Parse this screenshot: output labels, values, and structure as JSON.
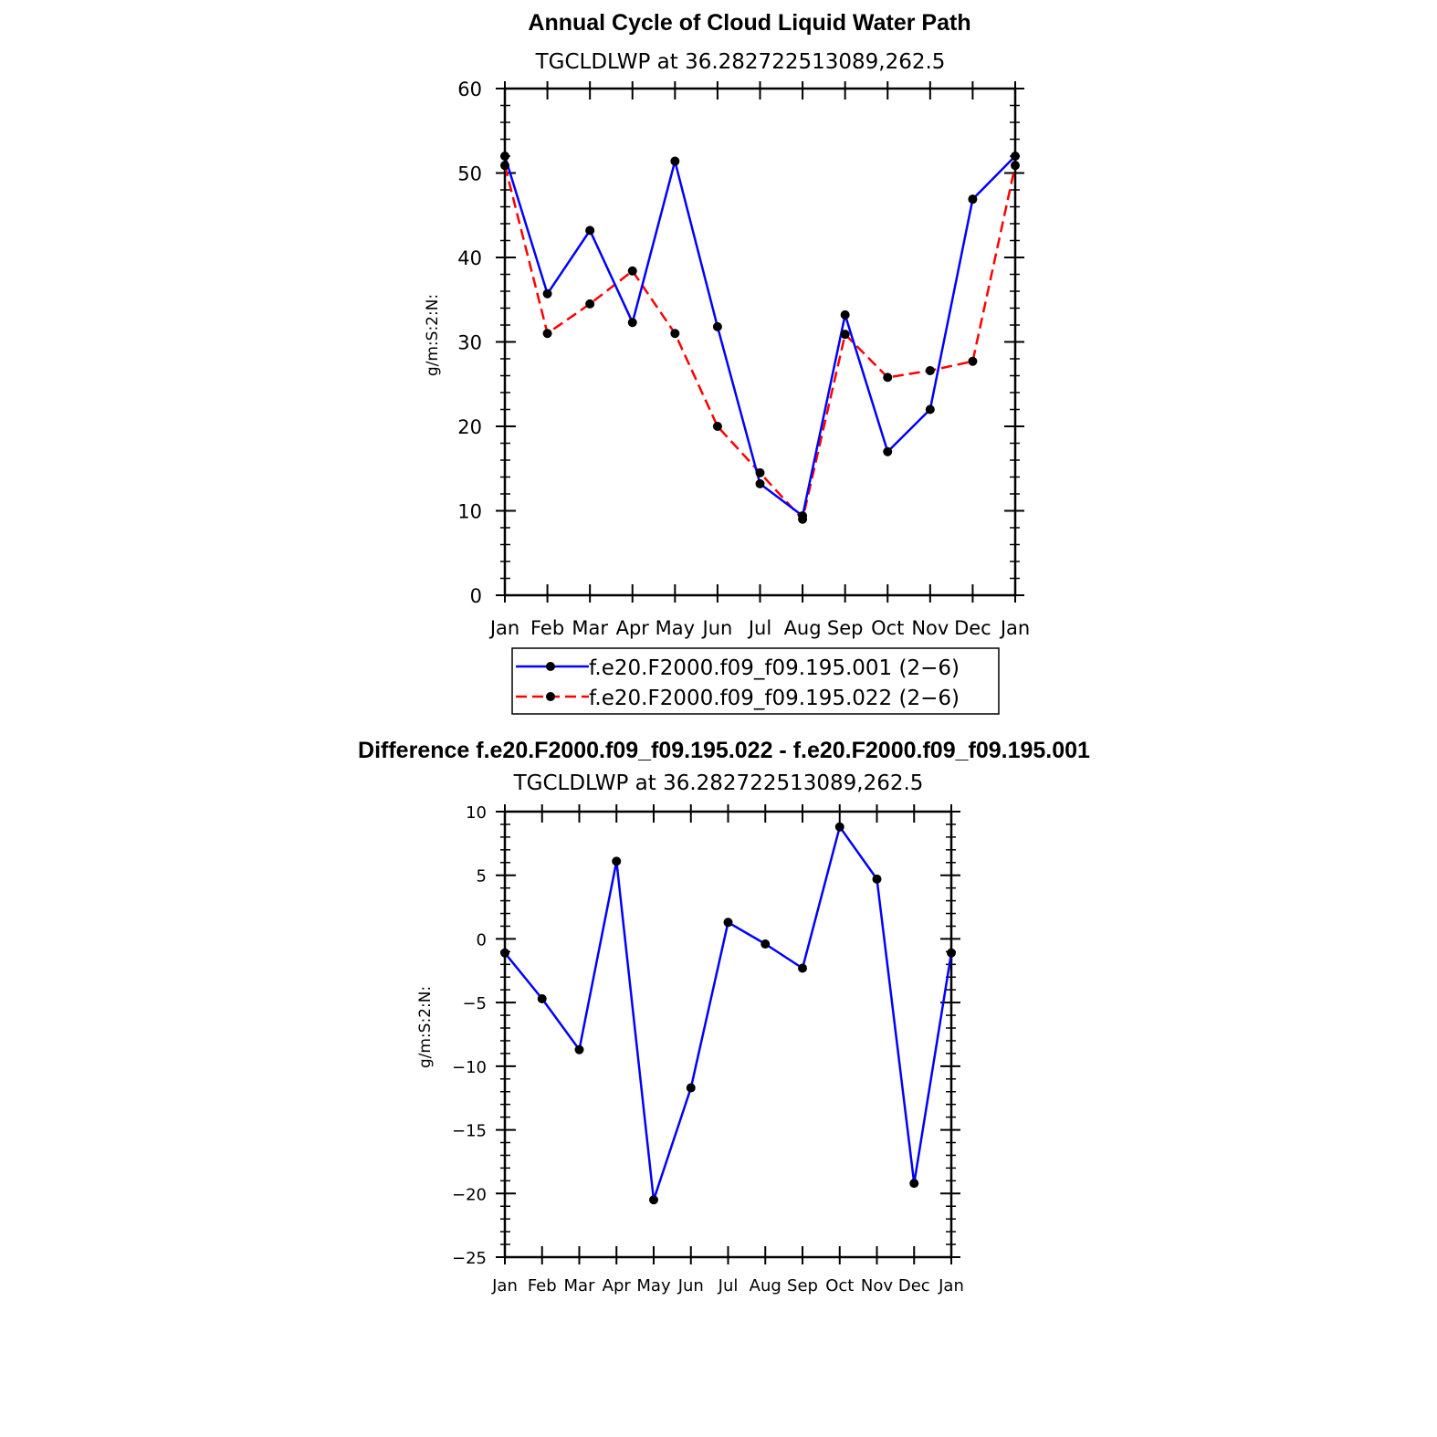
{
  "chart_data": [
    {
      "type": "line",
      "title": "Annual Cycle of Cloud Liquid Water Path",
      "subtitle": "TGCLDLWP at 36.282722513089,262.5",
      "ylabel": "g/m:S:2:N:",
      "ylim": [
        0,
        60
      ],
      "yticks": [
        0,
        10,
        20,
        30,
        40,
        50,
        60
      ],
      "categories": [
        "Jan",
        "Feb",
        "Mar",
        "Apr",
        "May",
        "Jun",
        "Jul",
        "Aug",
        "Sep",
        "Oct",
        "Nov",
        "Dec",
        "Jan"
      ],
      "legend_position": "bottom",
      "series": [
        {
          "name": "f.e20.F2000.f09_f09.195.001 (2−6)",
          "color": "#0000ff",
          "dash": "solid",
          "values": [
            52.0,
            35.7,
            43.2,
            32.3,
            51.4,
            31.8,
            13.2,
            9.4,
            33.2,
            17.0,
            22.0,
            46.9,
            52.0
          ]
        },
        {
          "name": "f.e20.F2000.f09_f09.195.022 (2−6)",
          "color": "#ff0000",
          "dash": "dashed",
          "values": [
            50.9,
            31.0,
            34.5,
            38.4,
            31.0,
            20.0,
            14.5,
            9.0,
            30.9,
            25.8,
            26.6,
            27.7,
            50.9
          ]
        }
      ]
    },
    {
      "type": "line",
      "title": "Difference f.e20.F2000.f09_f09.195.022 - f.e20.F2000.f09_f09.195.001",
      "subtitle": "TGCLDLWP at 36.282722513089,262.5",
      "ylabel": "g/m:S:2:N:",
      "ylim": [
        -25,
        10
      ],
      "yticks": [
        -25,
        -20,
        -15,
        -10,
        -5,
        0,
        5,
        10
      ],
      "ytick_labels": [
        "−25",
        "−20",
        "−15",
        "−10",
        "−5",
        "0",
        "5",
        "10"
      ],
      "categories": [
        "Jan",
        "Feb",
        "Mar",
        "Apr",
        "May",
        "Jun",
        "Jul",
        "Aug",
        "Sep",
        "Oct",
        "Nov",
        "Dec",
        "Jan"
      ],
      "series": [
        {
          "color": "#0000ff",
          "dash": "solid",
          "values": [
            -1.1,
            -4.7,
            -8.7,
            6.1,
            -20.5,
            -11.7,
            1.3,
            -0.4,
            -2.3,
            8.8,
            4.7,
            -19.2,
            -1.1
          ]
        }
      ]
    }
  ]
}
